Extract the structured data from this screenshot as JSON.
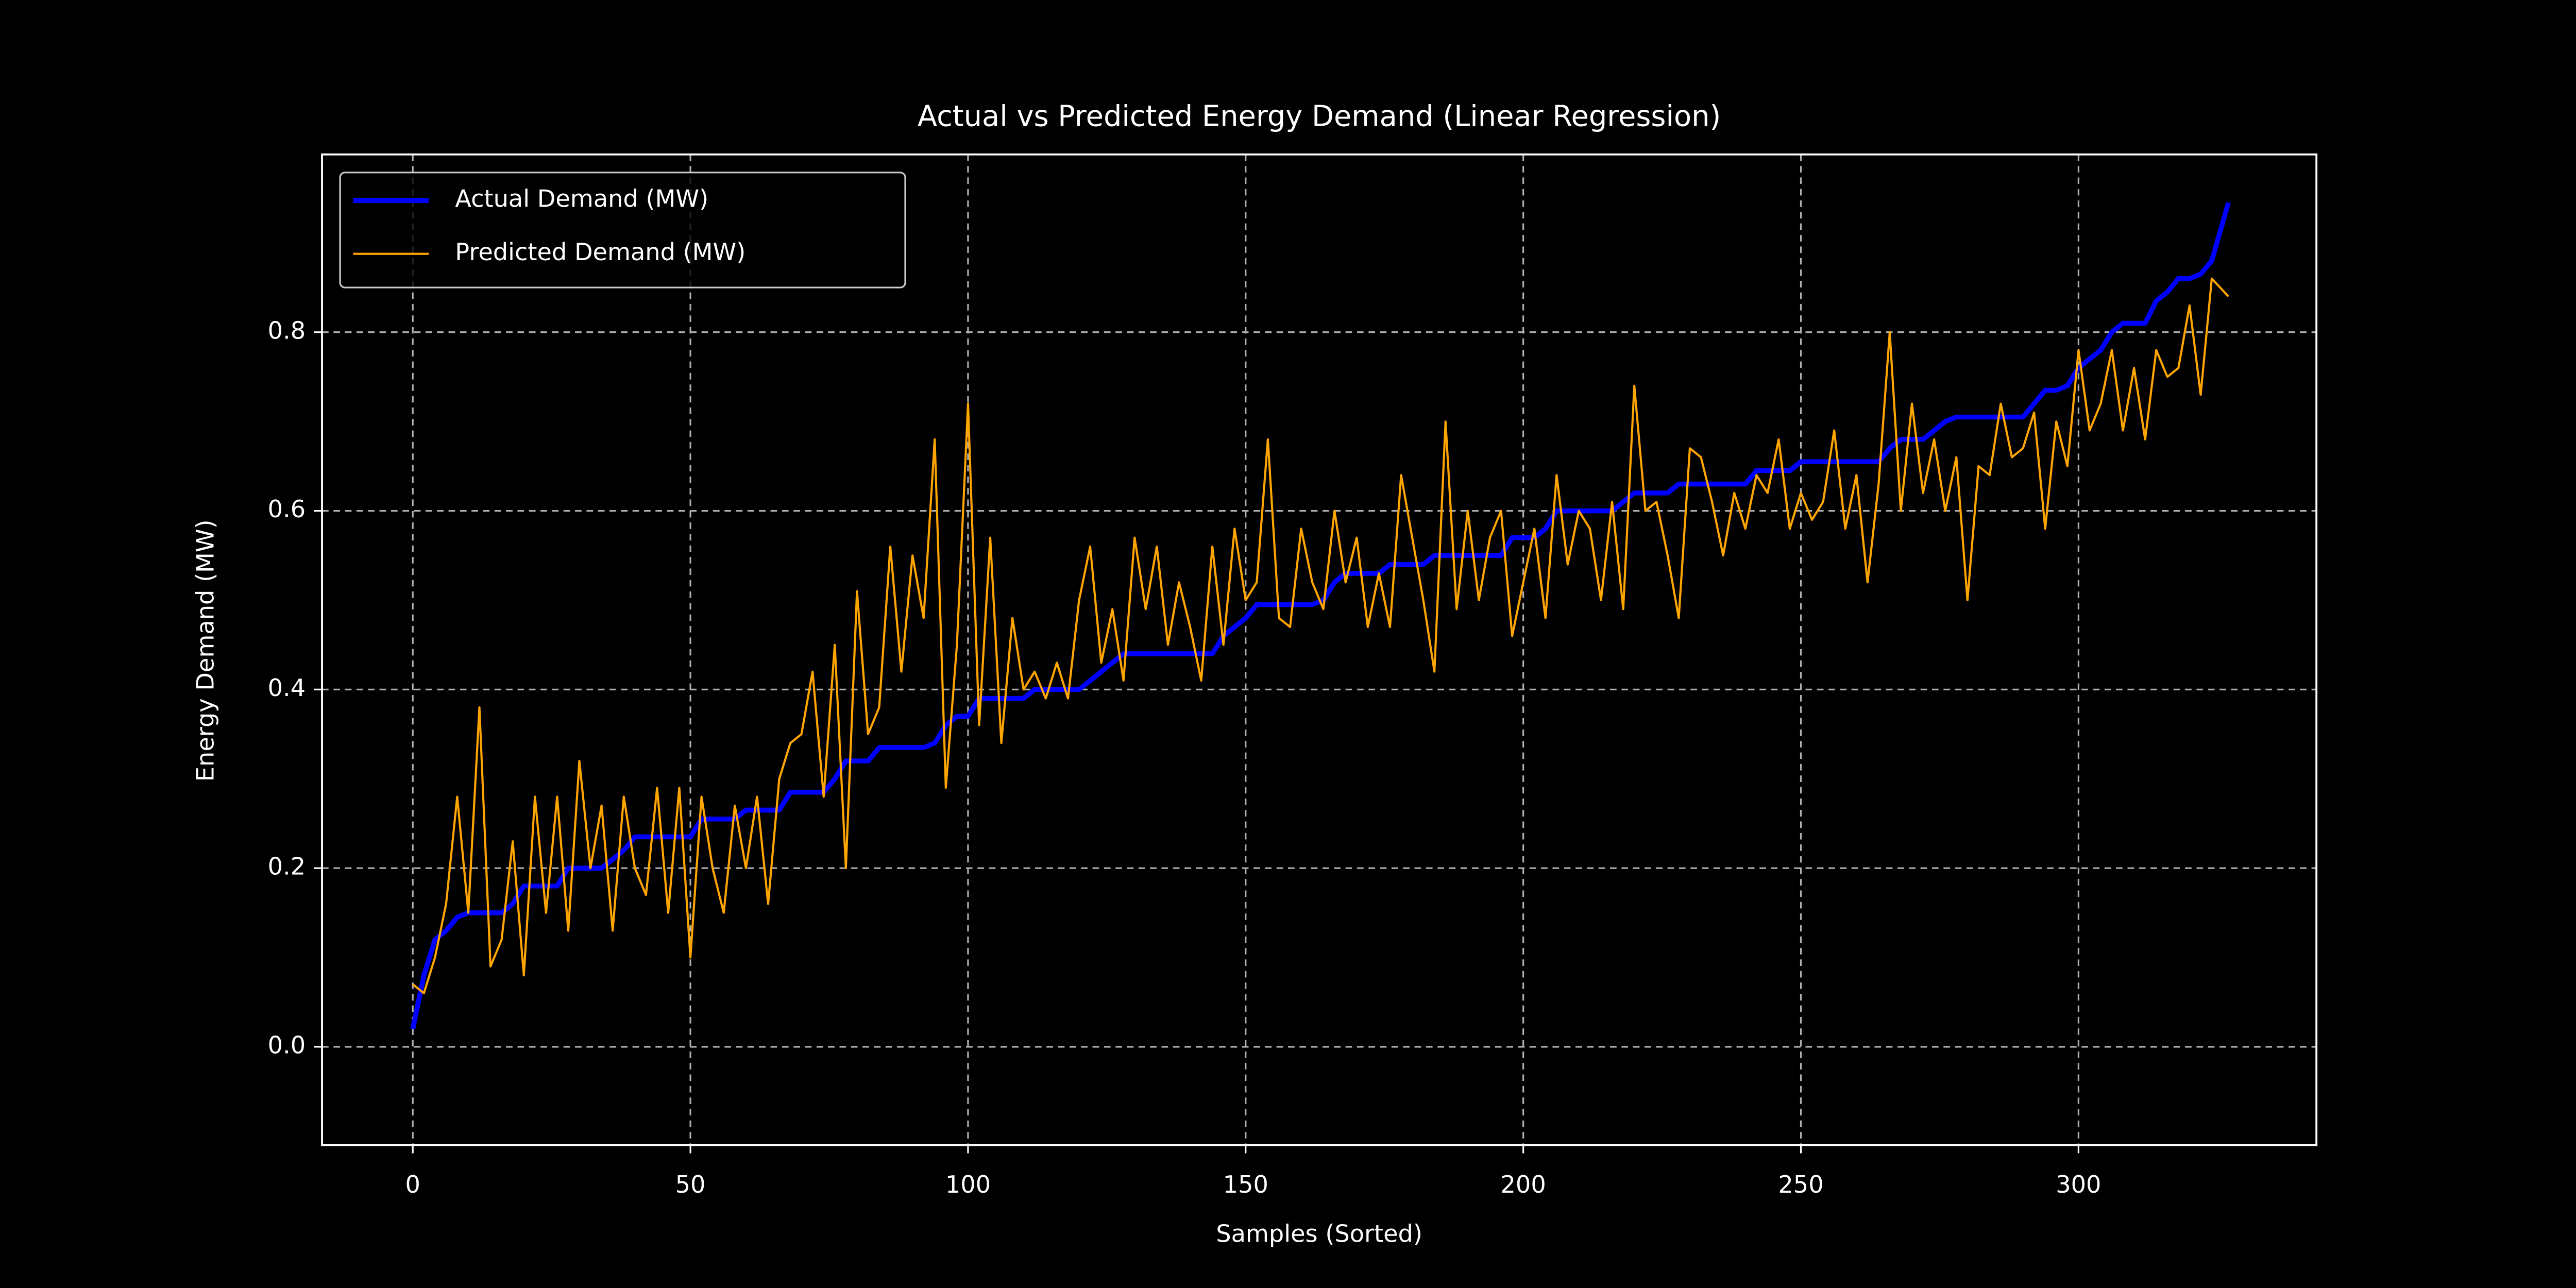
{
  "chart_data": {
    "type": "line",
    "title": "Actual vs Predicted Energy Demand (Linear Regression)",
    "x_label": "Samples (Sorted)",
    "y_label": "Energy Demand (MW)",
    "x": [
      0,
      2,
      4,
      6,
      8,
      10,
      12,
      14,
      16,
      18,
      20,
      22,
      24,
      26,
      28,
      30,
      32,
      34,
      36,
      38,
      40,
      42,
      44,
      46,
      48,
      50,
      52,
      54,
      56,
      58,
      60,
      62,
      64,
      66,
      68,
      70,
      72,
      74,
      76,
      78,
      80,
      82,
      84,
      86,
      88,
      90,
      92,
      94,
      96,
      98,
      100,
      102,
      104,
      106,
      108,
      110,
      112,
      114,
      116,
      118,
      120,
      122,
      124,
      126,
      128,
      130,
      132,
      134,
      136,
      138,
      140,
      142,
      144,
      146,
      148,
      150,
      152,
      154,
      156,
      158,
      160,
      162,
      164,
      166,
      168,
      170,
      172,
      174,
      176,
      178,
      180,
      182,
      184,
      186,
      188,
      190,
      192,
      194,
      196,
      198,
      200,
      202,
      204,
      206,
      208,
      210,
      212,
      214,
      216,
      218,
      220,
      222,
      224,
      226,
      228,
      230,
      232,
      234,
      236,
      238,
      240,
      242,
      244,
      246,
      248,
      250,
      252,
      254,
      256,
      258,
      260,
      262,
      264,
      266,
      268,
      270,
      272,
      274,
      276,
      278,
      280,
      282,
      284,
      286,
      288,
      290,
      292,
      294,
      296,
      298,
      300,
      302,
      304,
      306,
      308,
      310,
      312,
      314,
      316,
      318,
      320,
      322,
      324,
      327
    ],
    "series": [
      {
        "name": "Actual Demand (MW)",
        "color": "#0000ff",
        "width": 3,
        "values": [
          0.02,
          0.08,
          0.12,
          0.13,
          0.145,
          0.15,
          0.15,
          0.15,
          0.15,
          0.16,
          0.18,
          0.18,
          0.18,
          0.18,
          0.2,
          0.2,
          0.2,
          0.2,
          0.21,
          0.22,
          0.235,
          0.235,
          0.235,
          0.235,
          0.235,
          0.235,
          0.255,
          0.255,
          0.255,
          0.255,
          0.265,
          0.265,
          0.265,
          0.265,
          0.285,
          0.285,
          0.285,
          0.285,
          0.3,
          0.32,
          0.32,
          0.32,
          0.335,
          0.335,
          0.335,
          0.335,
          0.335,
          0.34,
          0.36,
          0.37,
          0.37,
          0.39,
          0.39,
          0.39,
          0.39,
          0.39,
          0.4,
          0.4,
          0.4,
          0.4,
          0.4,
          0.41,
          0.42,
          0.43,
          0.44,
          0.44,
          0.44,
          0.44,
          0.44,
          0.44,
          0.44,
          0.44,
          0.44,
          0.46,
          0.47,
          0.48,
          0.495,
          0.495,
          0.495,
          0.495,
          0.495,
          0.495,
          0.5,
          0.52,
          0.53,
          0.53,
          0.53,
          0.53,
          0.54,
          0.54,
          0.54,
          0.54,
          0.55,
          0.55,
          0.55,
          0.55,
          0.55,
          0.55,
          0.55,
          0.57,
          0.57,
          0.57,
          0.58,
          0.6,
          0.6,
          0.6,
          0.6,
          0.6,
          0.6,
          0.61,
          0.62,
          0.62,
          0.62,
          0.62,
          0.63,
          0.63,
          0.63,
          0.63,
          0.63,
          0.63,
          0.63,
          0.645,
          0.645,
          0.645,
          0.645,
          0.655,
          0.655,
          0.655,
          0.655,
          0.655,
          0.655,
          0.655,
          0.655,
          0.67,
          0.68,
          0.68,
          0.68,
          0.69,
          0.7,
          0.705,
          0.705,
          0.705,
          0.705,
          0.705,
          0.705,
          0.705,
          0.72,
          0.735,
          0.735,
          0.74,
          0.76,
          0.77,
          0.78,
          0.8,
          0.81,
          0.81,
          0.81,
          0.835,
          0.845,
          0.86,
          0.86,
          0.865,
          0.88,
          0.945
        ]
      },
      {
        "name": "Predicted Demand (MW)",
        "color": "#ffa500",
        "width": 1.3,
        "values": [
          0.07,
          0.06,
          0.1,
          0.16,
          0.28,
          0.15,
          0.38,
          0.09,
          0.12,
          0.23,
          0.08,
          0.28,
          0.15,
          0.28,
          0.13,
          0.32,
          0.2,
          0.27,
          0.13,
          0.28,
          0.2,
          0.17,
          0.29,
          0.15,
          0.29,
          0.1,
          0.28,
          0.2,
          0.15,
          0.27,
          0.2,
          0.28,
          0.16,
          0.3,
          0.34,
          0.35,
          0.42,
          0.28,
          0.45,
          0.2,
          0.51,
          0.35,
          0.38,
          0.56,
          0.42,
          0.55,
          0.48,
          0.68,
          0.29,
          0.45,
          0.72,
          0.36,
          0.57,
          0.34,
          0.48,
          0.4,
          0.42,
          0.39,
          0.43,
          0.39,
          0.5,
          0.56,
          0.43,
          0.49,
          0.41,
          0.57,
          0.49,
          0.56,
          0.45,
          0.52,
          0.47,
          0.41,
          0.56,
          0.45,
          0.58,
          0.5,
          0.52,
          0.68,
          0.48,
          0.47,
          0.58,
          0.52,
          0.49,
          0.6,
          0.52,
          0.57,
          0.47,
          0.53,
          0.47,
          0.64,
          0.57,
          0.5,
          0.42,
          0.7,
          0.49,
          0.6,
          0.5,
          0.57,
          0.6,
          0.46,
          0.52,
          0.58,
          0.48,
          0.64,
          0.54,
          0.6,
          0.58,
          0.5,
          0.61,
          0.49,
          0.74,
          0.6,
          0.61,
          0.55,
          0.48,
          0.67,
          0.66,
          0.61,
          0.55,
          0.62,
          0.58,
          0.64,
          0.62,
          0.68,
          0.58,
          0.62,
          0.59,
          0.61,
          0.69,
          0.58,
          0.64,
          0.52,
          0.63,
          0.8,
          0.6,
          0.72,
          0.62,
          0.68,
          0.6,
          0.66,
          0.5,
          0.65,
          0.64,
          0.72,
          0.66,
          0.67,
          0.71,
          0.58,
          0.7,
          0.65,
          0.78,
          0.69,
          0.72,
          0.78,
          0.69,
          0.76,
          0.68,
          0.78,
          0.75,
          0.76,
          0.83,
          0.73,
          0.86,
          0.84
        ]
      }
    ],
    "xlim": [
      -16.35,
      342.85
    ],
    "ylim": [
      -0.11,
      0.999
    ],
    "xticks": [
      0,
      50,
      100,
      150,
      200,
      250,
      300
    ],
    "yticks": [
      {
        "value": 0,
        "label": "0.0"
      },
      {
        "value": 0.2,
        "label": "0.2"
      },
      {
        "value": 0.4,
        "label": "0.4"
      },
      {
        "value": 0.6,
        "label": "0.6"
      },
      {
        "value": 0.8,
        "label": "0.8"
      }
    ],
    "grid": true,
    "legend": "upper left"
  }
}
